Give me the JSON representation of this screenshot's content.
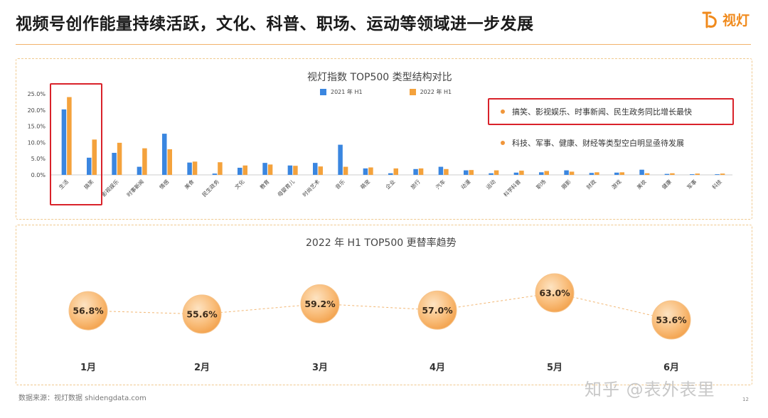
{
  "header": {
    "title": "视频号创作能量持续活跃，文化、科普、职场、运动等领域进一步发展",
    "logo_text": "视灯"
  },
  "colors": {
    "series_2021": "#3a86e0",
    "series_2022": "#f4a23c",
    "accent": "#f08a1c",
    "highlight": "#d9222a"
  },
  "chart_data": [
    {
      "type": "bar",
      "title": "视灯指数 TOP500 类型结构对比",
      "y_tick_labels": [
        "25.0%",
        "20.0%",
        "15.0%",
        "10.0%",
        "5.0%",
        "0.0%"
      ],
      "ylim": [
        0,
        25
      ],
      "categories": [
        "生活",
        "搞笑",
        "影视娱乐",
        "时事新闻",
        "情感",
        "美食",
        "民生政务",
        "文化",
        "教育",
        "母婴育儿",
        "时尚艺术",
        "音乐",
        "萌宠",
        "企业",
        "旅行",
        "汽车",
        "动漫",
        "运动",
        "科学科普",
        "职场",
        "摄影",
        "财政",
        "游戏",
        "美妆",
        "健康",
        "军事",
        "科技"
      ],
      "series": [
        {
          "name": "2021 年 H1",
          "values": [
            20.2,
            5.3,
            6.8,
            2.5,
            12.7,
            3.8,
            0.4,
            2.2,
            3.7,
            2.9,
            3.7,
            9.3,
            2.0,
            0.5,
            1.8,
            2.5,
            1.4,
            0.5,
            0.7,
            0.8,
            1.4,
            0.6,
            0.7,
            1.6,
            0.3,
            0.2,
            0.2
          ]
        },
        {
          "name": "2022 年 H1",
          "values": [
            24.0,
            10.9,
            9.9,
            8.2,
            7.9,
            4.1,
            3.9,
            2.9,
            3.2,
            2.8,
            2.6,
            2.5,
            2.3,
            2.0,
            2.0,
            1.8,
            1.5,
            1.4,
            1.3,
            1.2,
            1.0,
            0.8,
            0.8,
            0.5,
            0.5,
            0.4,
            0.4
          ]
        }
      ],
      "callouts": [
        "搞笑、影视娱乐、时事新闻、民生政务同比增长最快",
        "科技、军事、健康、财经等类型空白明显亟待发展"
      ]
    },
    {
      "type": "line",
      "title": "2022 年 H1 TOP500 更替率趋势",
      "categories": [
        "1月",
        "2月",
        "3月",
        "4月",
        "5月",
        "6月"
      ],
      "values": [
        56.8,
        55.6,
        59.2,
        57.0,
        63.0,
        53.6
      ],
      "value_labels": [
        "56.8%",
        "55.6%",
        "59.2%",
        "57.0%",
        "63.0%",
        "53.6%"
      ]
    }
  ],
  "footer": {
    "source": "数据来源：视灯数据 shidengdata.com",
    "watermark": "知乎 @表外表里",
    "page": "12"
  }
}
